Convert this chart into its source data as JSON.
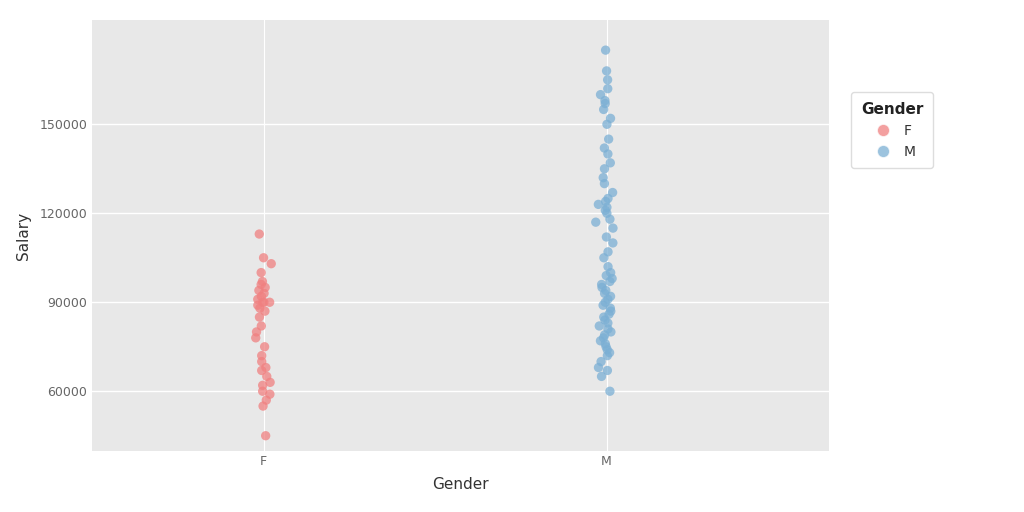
{
  "title": "",
  "xlabel": "Gender",
  "ylabel": "Salary",
  "background_color": "#E8E8E8",
  "grid_color": "#FFFFFF",
  "female_color": "#F08080",
  "male_color": "#7BAFD4",
  "female_salaries": [
    45000,
    55000,
    57000,
    59000,
    60000,
    62000,
    63000,
    65000,
    67000,
    68000,
    70000,
    72000,
    75000,
    78000,
    80000,
    82000,
    85000,
    87000,
    88000,
    89000,
    90000,
    90000,
    90000,
    91000,
    92000,
    93000,
    94000,
    95000,
    96000,
    97000,
    100000,
    103000,
    105000,
    113000
  ],
  "male_salaries": [
    60000,
    65000,
    67000,
    68000,
    70000,
    72000,
    73000,
    74000,
    75000,
    76000,
    77000,
    78000,
    79000,
    80000,
    81000,
    82000,
    83000,
    84000,
    85000,
    86000,
    87000,
    88000,
    89000,
    90000,
    91000,
    92000,
    93000,
    94000,
    95000,
    96000,
    97000,
    98000,
    99000,
    100000,
    102000,
    105000,
    107000,
    110000,
    112000,
    115000,
    117000,
    118000,
    120000,
    121000,
    122000,
    123000,
    124000,
    125000,
    127000,
    130000,
    132000,
    135000,
    137000,
    140000,
    142000,
    145000,
    150000,
    152000,
    155000,
    157000,
    158000,
    160000,
    162000,
    165000,
    168000,
    175000
  ],
  "ylim": [
    40000,
    185000
  ],
  "yticks": [
    60000,
    90000,
    120000,
    150000
  ],
  "legend_title": "Gender",
  "alpha": 0.75,
  "marker_size": 45,
  "jitter_scale": 0.012
}
